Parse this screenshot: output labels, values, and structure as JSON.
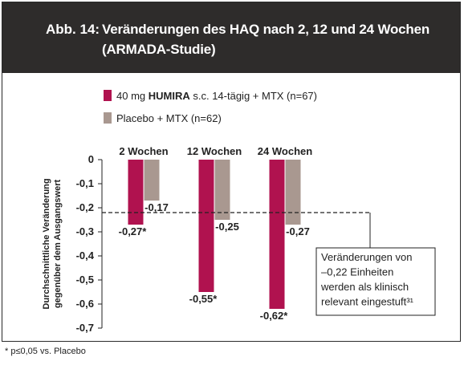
{
  "header": {
    "prefix": "Abb. 14:",
    "title_line1": "Veränderungen des HAQ nach 2, 12 und 24 Wochen",
    "title_line2": "(ARMADA-Studie)"
  },
  "legend": [
    {
      "pre": "40 mg ",
      "bold": "HUMIRA",
      "post": " s.c. 14-tägig + MTX (n=67)",
      "color": "#b0124f"
    },
    {
      "pre": "Placebo + MTX (n=62)",
      "bold": "",
      "post": "",
      "color": "#a99890"
    }
  ],
  "annotation": {
    "lines": [
      "Veränderungen von",
      "–0,22 Einheiten",
      "werden als klinisch",
      "relevant eingestuft³¹"
    ],
    "threshold": -0.22
  },
  "footnote": "* p≤0,05 vs. Placebo",
  "chart_data": {
    "type": "bar",
    "categories": [
      "2 Wochen",
      "12 Wochen",
      "24 Wochen"
    ],
    "series": [
      {
        "name": "40 mg HUMIRA s.c. 14-tägig + MTX (n=67)",
        "values": [
          -0.27,
          -0.55,
          -0.62
        ],
        "labels": [
          "-0,27*",
          "-0,55*",
          "-0,62*"
        ],
        "color": "#b0124f"
      },
      {
        "name": "Placebo + MTX (n=62)",
        "values": [
          -0.17,
          -0.25,
          -0.27
        ],
        "labels": [
          "-0,17",
          "-0,25",
          "-0,27"
        ],
        "color": "#a99890"
      }
    ],
    "ylabel_line1": "Durchschnittliche Veränderung",
    "ylabel_line2": "gegenüber dem Ausgangswert",
    "ylim": [
      -0.7,
      0
    ],
    "yticks": [
      0,
      -0.1,
      -0.2,
      -0.3,
      -0.4,
      -0.5,
      -0.6,
      -0.7
    ],
    "ytick_labels": [
      "0",
      "-0,1",
      "-0,2",
      "-0,3",
      "-0,4",
      "-0,5",
      "-0,6",
      "-0,7"
    ],
    "reference_line": -0.22
  }
}
